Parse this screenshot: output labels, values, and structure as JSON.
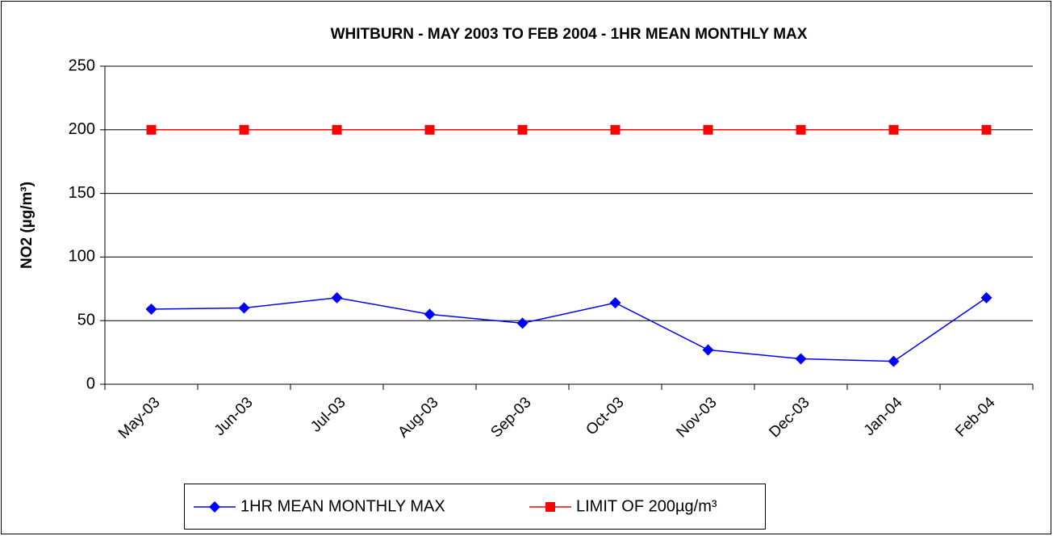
{
  "chart_data": {
    "type": "line",
    "title": "WHITBURN - MAY 2003 TO FEB 2004 - 1HR MEAN MONTHLY MAX",
    "y_label": "NO2 (µg/m³)",
    "categories": [
      "May-03",
      "Jun-03",
      "Jul-03",
      "Aug-03",
      "Sep-03",
      "Oct-03",
      "Nov-03",
      "Dec-03",
      "Jan-04",
      "Feb-04"
    ],
    "series": [
      {
        "name": "1HR MEAN MONTHLY MAX",
        "color": "#0000ff",
        "marker": "diamond",
        "values": [
          59,
          60,
          68,
          55,
          48,
          64,
          27,
          20,
          18,
          68
        ]
      },
      {
        "name": "LIMIT OF 200µg/m³",
        "color": "#ff0000",
        "marker": "square",
        "values": [
          200,
          200,
          200,
          200,
          200,
          200,
          200,
          200,
          200,
          200
        ]
      }
    ],
    "ylim": [
      0,
      250
    ],
    "yticks": [
      0,
      50,
      100,
      150,
      200,
      250
    ],
    "grid": true,
    "legend": "bottom"
  }
}
